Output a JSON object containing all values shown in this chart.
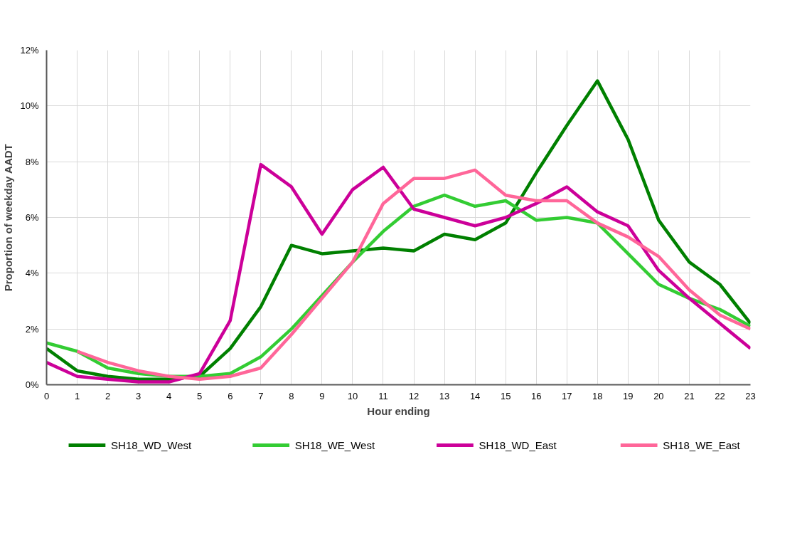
{
  "chart_data": {
    "type": "line",
    "xlabel": "Hour ending",
    "ylabel": "Proportion of weekday AADT",
    "x": [
      0,
      1,
      2,
      3,
      4,
      5,
      6,
      7,
      8,
      9,
      10,
      11,
      12,
      13,
      14,
      15,
      16,
      17,
      18,
      19,
      20,
      21,
      22,
      23
    ],
    "xlim": [
      0,
      23
    ],
    "xticks": [
      0,
      1,
      2,
      3,
      4,
      5,
      6,
      7,
      8,
      9,
      10,
      11,
      12,
      13,
      14,
      15,
      16,
      17,
      18,
      19,
      20,
      21,
      22,
      23
    ],
    "ylim": [
      0,
      12
    ],
    "yticks": [
      {
        "value": 0,
        "label": "0%"
      },
      {
        "value": 2,
        "label": "2%"
      },
      {
        "value": 4,
        "label": "4%"
      },
      {
        "value": 6,
        "label": "6%"
      },
      {
        "value": 8,
        "label": "8%"
      },
      {
        "value": 10,
        "label": "10%"
      },
      {
        "value": 12,
        "label": "12%"
      }
    ],
    "grid": true,
    "legend": "bottom",
    "marker": "none",
    "line_style": "solid",
    "series": [
      {
        "name": "SH18_WD_West",
        "color": "#008000",
        "values": [
          1.3,
          0.5,
          0.3,
          0.2,
          0.2,
          0.3,
          1.3,
          2.8,
          5.0,
          4.7,
          4.8,
          4.9,
          4.8,
          5.4,
          5.2,
          5.8,
          7.6,
          9.3,
          10.9,
          8.8,
          5.9,
          4.4,
          3.6,
          2.2
        ]
      },
      {
        "name": "SH18_WE_West",
        "color": "#33cc33",
        "values": [
          1.5,
          1.2,
          0.6,
          0.4,
          0.3,
          0.3,
          0.4,
          1.0,
          2.0,
          3.2,
          4.4,
          5.5,
          6.4,
          6.8,
          6.4,
          6.6,
          5.9,
          6.0,
          5.8,
          4.7,
          3.6,
          3.1,
          2.7,
          2.1
        ]
      },
      {
        "name": "SH18_WD_East",
        "color": "#cc0099",
        "values": [
          0.8,
          0.3,
          0.2,
          0.1,
          0.1,
          0.4,
          2.3,
          7.9,
          7.1,
          5.4,
          7.0,
          7.8,
          6.3,
          6.0,
          5.7,
          6.0,
          6.5,
          7.1,
          6.2,
          5.7,
          4.1,
          3.1,
          2.2,
          1.3
        ]
      },
      {
        "name": "SH18_WE_East",
        "color": "#ff6699",
        "values": [
          null,
          1.2,
          0.8,
          0.5,
          0.3,
          0.2,
          0.3,
          0.6,
          1.8,
          3.1,
          4.4,
          6.5,
          7.4,
          7.4,
          7.7,
          6.8,
          6.6,
          6.6,
          5.8,
          5.3,
          4.6,
          3.4,
          2.5,
          2.0
        ]
      }
    ]
  }
}
